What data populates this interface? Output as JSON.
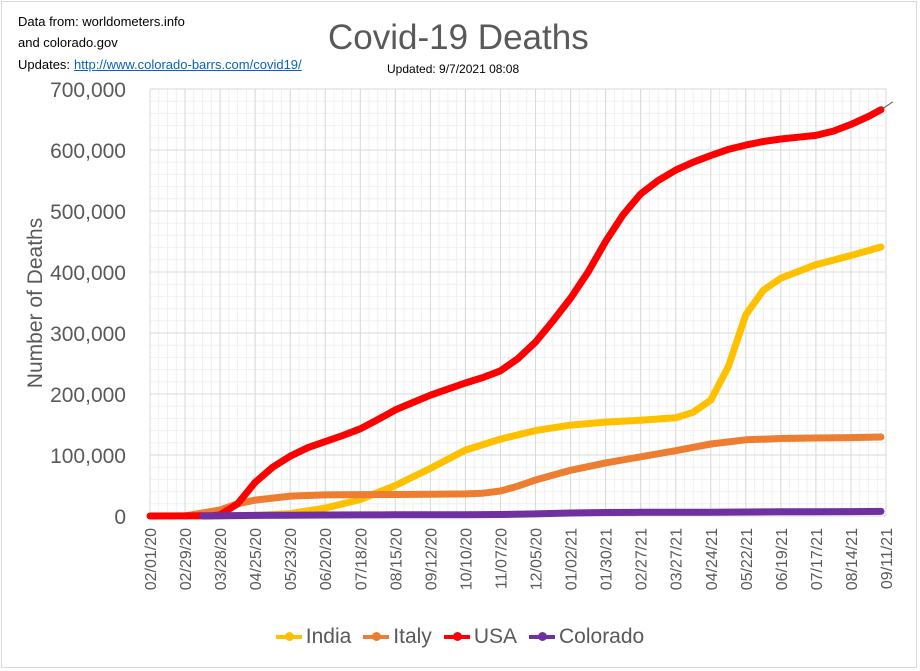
{
  "header": {
    "source_line1": "Data from: worldometers.info",
    "source_line2": "and colorado.gov",
    "updates_label": "Updates:",
    "updates_link": "http://www.colorado-barrs.com/covid19/",
    "updated_text": "Updated: 9/7/2021 08:08"
  },
  "chart_data": {
    "type": "line",
    "title": "Covid-19 Deaths",
    "xlabel": "",
    "ylabel": "Number of Deaths",
    "ylim": [
      0,
      700000
    ],
    "yticks": [
      0,
      100000,
      200000,
      300000,
      400000,
      500000,
      600000,
      700000
    ],
    "ytick_labels": [
      "0",
      "100,000",
      "200,000",
      "300,000",
      "400,000",
      "500,000",
      "600,000",
      "700,000"
    ],
    "x_range": [
      "2020-02-01",
      "2021-09-11"
    ],
    "xtick_labels": [
      "02/01/20",
      "02/29/20",
      "03/28/20",
      "04/25/20",
      "05/23/20",
      "06/20/20",
      "07/18/20",
      "08/15/20",
      "09/12/20",
      "10/10/20",
      "11/07/20",
      "12/05/20",
      "01/02/21",
      "01/30/21",
      "02/27/21",
      "03/27/21",
      "04/24/21",
      "05/22/21",
      "06/19/21",
      "07/17/21",
      "08/14/21",
      "09/11/21"
    ],
    "grid": true,
    "legend_position": "bottom",
    "series": [
      {
        "name": "India",
        "color": "#ffc000",
        "points": [
          [
            "2020-03-10",
            0
          ],
          [
            "2020-04-25",
            800
          ],
          [
            "2020-05-23",
            4000
          ],
          [
            "2020-06-20",
            13000
          ],
          [
            "2020-07-18",
            27000
          ],
          [
            "2020-08-15",
            50000
          ],
          [
            "2020-09-12",
            78000
          ],
          [
            "2020-10-10",
            108000
          ],
          [
            "2020-11-07",
            126000
          ],
          [
            "2020-12-05",
            140000
          ],
          [
            "2021-01-02",
            149000
          ],
          [
            "2021-01-30",
            154000
          ],
          [
            "2021-02-27",
            157000
          ],
          [
            "2021-03-27",
            161000
          ],
          [
            "2021-04-10",
            170000
          ],
          [
            "2021-04-24",
            190000
          ],
          [
            "2021-05-08",
            245000
          ],
          [
            "2021-05-22",
            330000
          ],
          [
            "2021-06-05",
            370000
          ],
          [
            "2021-06-19",
            390000
          ],
          [
            "2021-07-17",
            412000
          ],
          [
            "2021-08-14",
            427000
          ],
          [
            "2021-09-07",
            441000
          ]
        ]
      },
      {
        "name": "Italy",
        "color": "#ed7d31",
        "points": [
          [
            "2020-02-29",
            0
          ],
          [
            "2020-03-28",
            10000
          ],
          [
            "2020-04-11",
            20000
          ],
          [
            "2020-04-25",
            26000
          ],
          [
            "2020-05-23",
            32700
          ],
          [
            "2020-06-20",
            34600
          ],
          [
            "2020-07-18",
            35100
          ],
          [
            "2020-08-15",
            35300
          ],
          [
            "2020-09-12",
            35600
          ],
          [
            "2020-10-10",
            36200
          ],
          [
            "2020-10-24",
            37300
          ],
          [
            "2020-11-07",
            41000
          ],
          [
            "2020-11-21",
            49000
          ],
          [
            "2020-12-05",
            59000
          ],
          [
            "2021-01-02",
            75000
          ],
          [
            "2021-01-30",
            87000
          ],
          [
            "2021-02-27",
            97000
          ],
          [
            "2021-03-27",
            107000
          ],
          [
            "2021-04-24",
            118000
          ],
          [
            "2021-05-22",
            125000
          ],
          [
            "2021-06-19",
            127000
          ],
          [
            "2021-07-17",
            127800
          ],
          [
            "2021-08-14",
            128500
          ],
          [
            "2021-09-07",
            129500
          ]
        ]
      },
      {
        "name": "USA",
        "color": "#ff0000",
        "points": [
          [
            "2020-02-01",
            0
          ],
          [
            "2020-03-21",
            300
          ],
          [
            "2020-03-28",
            2000
          ],
          [
            "2020-04-11",
            20000
          ],
          [
            "2020-04-25",
            55000
          ],
          [
            "2020-05-09",
            80000
          ],
          [
            "2020-05-23",
            98000
          ],
          [
            "2020-06-06",
            112000
          ],
          [
            "2020-06-20",
            122000
          ],
          [
            "2020-07-04",
            132000
          ],
          [
            "2020-07-18",
            143000
          ],
          [
            "2020-08-01",
            158000
          ],
          [
            "2020-08-15",
            174000
          ],
          [
            "2020-08-29",
            186000
          ],
          [
            "2020-09-12",
            198000
          ],
          [
            "2020-09-26",
            208000
          ],
          [
            "2020-10-10",
            218000
          ],
          [
            "2020-10-24",
            227000
          ],
          [
            "2020-11-07",
            238000
          ],
          [
            "2020-11-21",
            258000
          ],
          [
            "2020-12-05",
            285000
          ],
          [
            "2020-12-19",
            320000
          ],
          [
            "2021-01-02",
            357000
          ],
          [
            "2021-01-16",
            400000
          ],
          [
            "2021-01-30",
            450000
          ],
          [
            "2021-02-13",
            494000
          ],
          [
            "2021-02-27",
            528000
          ],
          [
            "2021-03-13",
            550000
          ],
          [
            "2021-03-27",
            567000
          ],
          [
            "2021-04-10",
            580000
          ],
          [
            "2021-04-24",
            591000
          ],
          [
            "2021-05-08",
            601000
          ],
          [
            "2021-05-22",
            608000
          ],
          [
            "2021-06-05",
            614000
          ],
          [
            "2021-06-19",
            618000
          ],
          [
            "2021-07-03",
            621000
          ],
          [
            "2021-07-17",
            624000
          ],
          [
            "2021-07-31",
            631000
          ],
          [
            "2021-08-14",
            642000
          ],
          [
            "2021-08-28",
            655000
          ],
          [
            "2021-09-07",
            666000
          ]
        ]
      },
      {
        "name": "Colorado",
        "color": "#7030a0",
        "points": [
          [
            "2020-03-14",
            0
          ],
          [
            "2020-04-25",
            1000
          ],
          [
            "2020-05-23",
            1300
          ],
          [
            "2020-06-20",
            1600
          ],
          [
            "2020-07-18",
            1800
          ],
          [
            "2020-08-15",
            1900
          ],
          [
            "2020-09-12",
            2000
          ],
          [
            "2020-10-10",
            2100
          ],
          [
            "2020-11-07",
            2500
          ],
          [
            "2020-12-05",
            3500
          ],
          [
            "2021-01-02",
            5000
          ],
          [
            "2021-01-30",
            5700
          ],
          [
            "2021-02-27",
            6000
          ],
          [
            "2021-03-27",
            6100
          ],
          [
            "2021-04-24",
            6300
          ],
          [
            "2021-05-22",
            6600
          ],
          [
            "2021-06-19",
            6900
          ],
          [
            "2021-07-17",
            7000
          ],
          [
            "2021-08-14",
            7200
          ],
          [
            "2021-09-07",
            7500
          ]
        ]
      }
    ]
  }
}
